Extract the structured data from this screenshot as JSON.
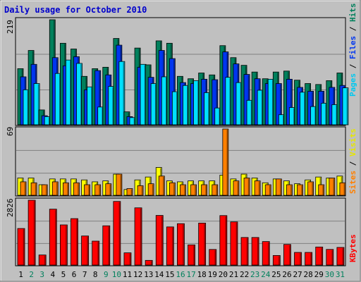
{
  "chart_data": [
    {
      "type": "bar",
      "title": "Daily usage for October 2010",
      "panel": "top",
      "ymax_label": "219",
      "legend": [
        "Pages",
        "Files",
        "Hits"
      ],
      "categories": [
        "1",
        "2",
        "3",
        "4",
        "5",
        "6",
        "7",
        "8",
        "9",
        "10",
        "11",
        "12",
        "13",
        "14",
        "15",
        "16",
        "17",
        "18",
        "19",
        "20",
        "21",
        "22",
        "23",
        "24",
        "25",
        "26",
        "27",
        "28",
        "29",
        "30",
        "31"
      ],
      "weekend_days": [
        2,
        3,
        9,
        10,
        16,
        17,
        23,
        24,
        30,
        31
      ],
      "series": [
        {
          "name": "Hits",
          "color": "#00805c",
          "values": [
            117,
            155,
            31,
            219,
            170,
            158,
            101,
            117,
            120,
            180,
            27,
            160,
            125,
            175,
            170,
            101,
            96,
            108,
            104,
            165,
            140,
            124,
            110,
            96,
            110,
            112,
            93,
            86,
            84,
            92,
            108
          ]
        },
        {
          "name": "Files",
          "color": "#0036f0",
          "values": [
            100,
            126,
            19,
            140,
            123,
            142,
            73,
            113,
            104,
            166,
            17,
            120,
            99,
            155,
            138,
            88,
            86,
            95,
            94,
            152,
            127,
            105,
            96,
            86,
            86,
            95,
            78,
            70,
            70,
            78,
            82
          ]
        },
        {
          "name": "Pages",
          "color": "#00e0ff",
          "values": [
            73,
            86,
            17,
            107,
            135,
            128,
            79,
            37,
            80,
            132,
            15,
            126,
            86,
            100,
            69,
            82,
            92,
            67,
            35,
            99,
            88,
            51,
            72,
            95,
            21,
            36,
            68,
            38,
            45,
            42,
            77
          ]
        }
      ]
    },
    {
      "type": "bar",
      "panel": "middle",
      "ymax_label": "69",
      "legend": [
        "Sites",
        "Visits"
      ],
      "categories": [
        "1",
        "2",
        "3",
        "4",
        "5",
        "6",
        "7",
        "8",
        "9",
        "10",
        "11",
        "12",
        "13",
        "14",
        "15",
        "16",
        "17",
        "18",
        "19",
        "20",
        "21",
        "22",
        "23",
        "24",
        "25",
        "26",
        "27",
        "28",
        "29",
        "30",
        "31"
      ],
      "series": [
        {
          "name": "Visits",
          "color": "#ffff00",
          "values": [
            18,
            18,
            11,
            17,
            17,
            17,
            16,
            14,
            15,
            22,
            6,
            16,
            19,
            29,
            15,
            14,
            15,
            15,
            15,
            21,
            17,
            22,
            18,
            13,
            17,
            15,
            12,
            16,
            19,
            18,
            20
          ]
        },
        {
          "name": "Sites",
          "color": "#ff8000",
          "values": [
            14,
            13,
            11,
            14,
            13,
            13,
            11,
            11,
            12,
            22,
            7,
            10,
            12,
            20,
            13,
            11,
            11,
            11,
            11,
            69,
            15,
            18,
            15,
            11,
            17,
            11,
            11,
            14,
            11,
            18,
            13
          ]
        }
      ]
    },
    {
      "type": "bar",
      "panel": "bottom",
      "ymax_label": "2826",
      "legend": [
        "KBytes"
      ],
      "categories": [
        "1",
        "2",
        "3",
        "4",
        "5",
        "6",
        "7",
        "8",
        "9",
        "10",
        "11",
        "12",
        "13",
        "14",
        "15",
        "16",
        "17",
        "18",
        "19",
        "20",
        "21",
        "22",
        "23",
        "24",
        "25",
        "26",
        "27",
        "28",
        "29",
        "30",
        "31"
      ],
      "series": [
        {
          "name": "KBytes",
          "color": "#ff0000",
          "values": [
            1594,
            2826,
            440,
            2436,
            1751,
            2025,
            1268,
            1044,
            1711,
            2773,
            534,
            2495,
            205,
            2164,
            1663,
            1804,
            880,
            1830,
            681,
            2157,
            1882,
            1203,
            1203,
            1025,
            418,
            899,
            552,
            552,
            788,
            683,
            770
          ]
        }
      ]
    }
  ]
}
